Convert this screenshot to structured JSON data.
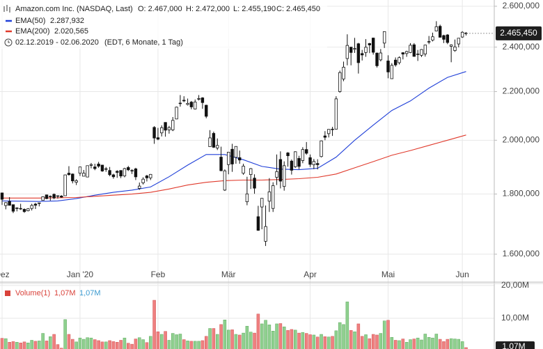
{
  "chart_data": {
    "type": "candlestick",
    "title": "Amazon.com Inc. (NASDAQ, Last)",
    "header": [
      "O: 2.467,000",
      "H: 2.472,000",
      "L: 2.455,190",
      "C: 2.465,450"
    ],
    "date_range": "02.12.2019 - 02.06.2020",
    "range_note": "(EDT, 6 Monate, 1 Tag)",
    "last_price": {
      "value": 2465.45,
      "label": "2.465,450"
    },
    "up_color": "#ffffff",
    "down_color": "#111111",
    "log_y": true,
    "grid": true,
    "xlim": [
      -0.56,
      132.6
    ],
    "xticks": [
      {
        "value": 0,
        "label": "Dez"
      },
      {
        "value": 21,
        "label": "Jan '20"
      },
      {
        "value": 42,
        "label": "Feb"
      },
      {
        "value": 61,
        "label": "Mär"
      },
      {
        "value": 83,
        "label": "Apr"
      },
      {
        "value": 104,
        "label": "Mai"
      },
      {
        "value": 124,
        "label": "Jun"
      }
    ],
    "ylim": [
      1519,
      2632
    ],
    "yticks": [
      {
        "value": 1600,
        "label": "1.600,000"
      },
      {
        "value": 1800,
        "label": "1.800,000"
      },
      {
        "value": 2000,
        "label": "2.000,000"
      },
      {
        "value": 2200,
        "label": "2.200,000"
      },
      {
        "value": 2400,
        "label": "2.400,000"
      },
      {
        "value": 2600,
        "label": "2.600,000"
      }
    ],
    "candles": [
      [
        1804,
        1805,
        1762,
        1781.6
      ],
      [
        1760,
        1772,
        1747,
        1769.96
      ],
      [
        1774,
        1789,
        1760,
        1760.69
      ],
      [
        1763,
        1763,
        1734,
        1740.48
      ],
      [
        1751,
        1754,
        1740,
        1751.6
      ],
      [
        1750,
        1766,
        1745,
        1749.51
      ],
      [
        1747,
        1750,
        1735,
        1739.21
      ],
      [
        1742,
        1751,
        1740,
        1748.72
      ],
      [
        1750,
        1766,
        1743,
        1760.33
      ],
      [
        1765,
        1769,
        1748,
        1760.94
      ],
      [
        1767,
        1769,
        1757,
        1769.21
      ],
      [
        1778,
        1792,
        1777,
        1790.66
      ],
      [
        1797,
        1798,
        1782,
        1784.03
      ],
      [
        1792,
        1795,
        1777,
        1792.28
      ],
      [
        1799,
        1802,
        1782,
        1786.5
      ],
      [
        1794,
        1795,
        1784,
        1793
      ],
      [
        1793,
        1796,
        1787,
        1789.21
      ],
      [
        1794,
        1870,
        1794,
        1868.77
      ],
      [
        1875,
        1901,
        1866,
        1869.8
      ],
      [
        1872,
        1874,
        1838,
        1846.89
      ],
      [
        1842,
        1853,
        1832,
        1847.84
      ],
      [
        1875,
        1899,
        1865,
        1898.01
      ],
      [
        1864,
        1887,
        1864,
        1874.97
      ],
      [
        1861,
        1903,
        1860,
        1902.88
      ],
      [
        1904,
        1913,
        1893,
        1906.86
      ],
      [
        1898,
        1910,
        1886,
        1891.97
      ],
      [
        1909,
        1917,
        1895,
        1901.05
      ],
      [
        1905,
        1906,
        1880,
        1883.16
      ],
      [
        1891,
        1898,
        1880,
        1891.3
      ],
      [
        1885,
        1898,
        1864,
        1869.44
      ],
      [
        1869,
        1873,
        1855,
        1862.02
      ],
      [
        1882,
        1886,
        1858,
        1877.94
      ],
      [
        1885,
        1886,
        1857,
        1864.72
      ],
      [
        1865,
        1895,
        1860,
        1892
      ],
      [
        1896,
        1902,
        1883,
        1887.46
      ],
      [
        1885,
        1890,
        1872,
        1884.58
      ],
      [
        1891,
        1895,
        1850,
        1861.64
      ],
      [
        1820,
        1841,
        1815,
        1828.34
      ],
      [
        1840,
        1860,
        1834,
        1853.25
      ],
      [
        1865,
        1869,
        1845,
        1858
      ],
      [
        1858,
        1872,
        1850,
        1870.68
      ],
      [
        2051,
        2056,
        1986,
        2008.72
      ],
      [
        2010,
        2049,
        2000,
        2004.2
      ],
      [
        2029,
        2059,
        2015,
        2049.67
      ],
      [
        2071,
        2072,
        2014,
        2039.87
      ],
      [
        2041,
        2057,
        2026,
        2050.23
      ],
      [
        2041,
        2093,
        2036,
        2079.28
      ],
      [
        2085,
        2136,
        2084,
        2133.91
      ],
      [
        2150,
        2185,
        2136,
        2150.8
      ],
      [
        2163,
        2180,
        2155,
        2160
      ],
      [
        2145,
        2170,
        2141,
        2149.87
      ],
      [
        2155,
        2160,
        2125,
        2134.87
      ],
      [
        2126,
        2166,
        2124,
        2155.67
      ],
      [
        2167,
        2185,
        2162,
        2170.22
      ],
      [
        2173,
        2176,
        2127,
        2153.1
      ],
      [
        2142,
        2144,
        2088,
        2095.97
      ],
      [
        1975,
        2040,
        1975,
        2009.29
      ],
      [
        2027,
        2034,
        1970,
        1972.74
      ],
      [
        1970,
        2007,
        1962,
        1979.59
      ],
      [
        1935,
        1975,
        1882,
        1884.3
      ],
      [
        1814,
        1889,
        1811,
        1883.75
      ],
      [
        1907,
        1954,
        1871,
        1953.95
      ],
      [
        1965,
        1986,
        1880,
        1908.99
      ],
      [
        1934,
        1976,
        1910,
        1975.83
      ],
      [
        1933,
        1960,
        1910,
        1924.03
      ],
      [
        1875,
        1910,
        1869,
        1901.09
      ],
      [
        1773,
        1862,
        1761,
        1800.61
      ],
      [
        1870,
        1894,
        1818,
        1891.82
      ],
      [
        1857,
        1871,
        1801,
        1820.86
      ],
      [
        1722,
        1759,
        1675,
        1676.61
      ],
      [
        1755,
        1786,
        1680,
        1785
      ],
      [
        1641,
        1760,
        1626,
        1689.15
      ],
      [
        1775,
        1857,
        1738,
        1807.84
      ],
      [
        1750,
        1842,
        1738,
        1830
      ],
      [
        1860,
        1945,
        1832,
        1880.93
      ],
      [
        1926,
        1957,
        1820,
        1846.09
      ],
      [
        1827,
        1919,
        1812,
        1902.83
      ],
      [
        1951,
        1954,
        1899,
        1940.1
      ],
      [
        1920,
        1926,
        1870,
        1885.84
      ],
      [
        1899,
        1957,
        1895,
        1955.49
      ],
      [
        1930,
        1940,
        1890,
        1900.1
      ],
      [
        1922,
        1973,
        1912,
        1963.95
      ],
      [
        1964,
        1993,
        1944,
        1949.72
      ],
      [
        1933,
        1945,
        1898,
        1907.7
      ],
      [
        1906,
        1928,
        1890,
        1918.83
      ],
      [
        1911,
        1927,
        1889,
        1906.59
      ],
      [
        1937,
        1999,
        1934,
        1997.59
      ],
      [
        2017,
        2036,
        2000,
        2011.6
      ],
      [
        2026,
        2044,
        2011,
        2043
      ],
      [
        2044,
        2053,
        2017,
        2042.76
      ],
      [
        2044,
        2180,
        2043,
        2168.87
      ],
      [
        2200,
        2292,
        2195,
        2283.32
      ],
      [
        2255,
        2333,
        2245,
        2307.68
      ],
      [
        2347,
        2461,
        2316,
        2408.19
      ],
      [
        2400,
        2400,
        2316,
        2375
      ],
      [
        2390,
        2444,
        2373,
        2393.61
      ],
      [
        2416,
        2420,
        2279,
        2328.12
      ],
      [
        2370,
        2387,
        2338,
        2363.49
      ],
      [
        2375,
        2438,
        2355,
        2399.45
      ],
      [
        2417,
        2420,
        2372,
        2410.22
      ],
      [
        2443,
        2445,
        2365,
        2376
      ],
      [
        2372,
        2375,
        2306,
        2314.08
      ],
      [
        2341,
        2391,
        2334,
        2372.71
      ],
      [
        2419,
        2475,
        2396,
        2474
      ],
      [
        2336,
        2362,
        2258,
        2286.04
      ],
      [
        2256,
        2326,
        2256,
        2315.99
      ],
      [
        2340,
        2352,
        2310,
        2317.8
      ],
      [
        2328,
        2357,
        2320,
        2351.26
      ],
      [
        2374,
        2376,
        2343,
        2367.61
      ],
      [
        2370,
        2383,
        2355,
        2379.61
      ],
      [
        2375,
        2419,
        2372,
        2409
      ],
      [
        2411,
        2419,
        2355,
        2356.95
      ],
      [
        2367,
        2387,
        2336,
        2367.92
      ],
      [
        2362,
        2391,
        2354,
        2388.85
      ],
      [
        2368,
        2411,
        2356,
        2409.78
      ],
      [
        2425,
        2453,
        2414,
        2426.26
      ],
      [
        2433,
        2469,
        2427,
        2449.33
      ],
      [
        2477,
        2525,
        2476,
        2497.94
      ],
      [
        2500,
        2508,
        2446,
        2446.74
      ],
      [
        2455,
        2459,
        2419,
        2436.88
      ],
      [
        2458,
        2462,
        2414,
        2421.86
      ],
      [
        2404,
        2413,
        2330,
        2410.39
      ],
      [
        2384,
        2436,
        2378,
        2401.1
      ],
      [
        2415,
        2442,
        2399,
        2442.37
      ],
      [
        2448,
        2476,
        2444,
        2471.04
      ],
      [
        2467,
        2472,
        2455.19,
        2465.45
      ]
    ],
    "series": [
      {
        "name": "EMA(50)",
        "value_label": "2.287,932",
        "color": "#1f3fd8",
        "x": [
          0,
          5,
          10,
          15,
          20,
          25,
          30,
          35,
          40,
          45,
          50,
          55,
          60,
          65,
          70,
          75,
          80,
          85,
          90,
          95,
          100,
          105,
          110,
          115,
          120,
          125
        ],
        "values": [
          1776,
          1775,
          1774,
          1776,
          1784,
          1796,
          1806,
          1814,
          1825,
          1862,
          1905,
          1945,
          1945,
          1925,
          1900,
          1890,
          1888,
          1893,
          1935,
          2000,
          2060,
          2120,
          2160,
          2215,
          2262,
          2287.932
        ]
      },
      {
        "name": "EMA(200)",
        "value_label": "2.020,565",
        "color": "#e0392b",
        "x": [
          0,
          5,
          10,
          15,
          20,
          25,
          30,
          35,
          40,
          45,
          50,
          55,
          60,
          65,
          70,
          75,
          80,
          85,
          90,
          95,
          100,
          105,
          110,
          115,
          120,
          125
        ],
        "values": [
          1786,
          1786,
          1786,
          1787,
          1788,
          1792,
          1796,
          1800,
          1806,
          1818,
          1832,
          1842,
          1848,
          1850,
          1850,
          1852,
          1855,
          1860,
          1872,
          1895,
          1918,
          1942,
          1960,
          1980,
          2000,
          2020.565
        ]
      }
    ],
    "volume": {
      "name": "Volume(1)",
      "header_values": [
        "1,07M",
        "1,07M"
      ],
      "last_label": "1,07M",
      "up_color": "#8fd08f",
      "down_color": "#ef8080",
      "name_color": "#d9423a",
      "second_color": "#3a9ad0",
      "ylim": [
        0,
        20.6
      ],
      "yticks": [
        {
          "value": 10,
          "label": "10,00M"
        },
        {
          "value": 20,
          "label": "20,00M"
        }
      ],
      "values": [
        3.9,
        3.8,
        2.7,
        2.9,
        2.7,
        2.5,
        2.8,
        2.5,
        3.3,
        3.0,
        3.1,
        5.4,
        3.1,
        4.4,
        5.1,
        2.0,
        0.9,
        9.6,
        5.1,
        3.6,
        2.8,
        4.0,
        3.6,
        4.1,
        4.0,
        3.5,
        3.2,
        2.8,
        2.8,
        3.2,
        2.9,
        2.7,
        3.3,
        4.0,
        2.4,
        2.1,
        3.7,
        4.1,
        3.5,
        2.6,
        4.5,
        15.5,
        5.9,
        5.1,
        6.0,
        3.3,
        5.4,
        5.0,
        5.2,
        3.5,
        3.1,
        3.0,
        3.0,
        3.0,
        3.2,
        4.5,
        6.9,
        6.9,
        5.1,
        8.1,
        9.5,
        6.4,
        6.5,
        5.1,
        4.9,
        5.5,
        7.6,
        5.8,
        5.5,
        11.3,
        8.3,
        9.4,
        8.0,
        6.1,
        8.3,
        8.4,
        7.4,
        6.3,
        6.6,
        6.4,
        5.5,
        5.7,
        5.4,
        5.0,
        4.9,
        4.3,
        5.1,
        4.4,
        4.3,
        4.5,
        6.2,
        8.7,
        8.1,
        15.0,
        6.3,
        5.9,
        8.3,
        4.5,
        5.0,
        3.8,
        5.1,
        4.9,
        5.4,
        9.2,
        9.4,
        4.2,
        3.3,
        3.2,
        3.7,
        2.7,
        3.5,
        3.7,
        4.0,
        3.4,
        5.2,
        4.2,
        4.0,
        5.2,
        3.6,
        2.9,
        3.6,
        3.8,
        3.7,
        3.6,
        2.9,
        1.07
      ]
    }
  }
}
